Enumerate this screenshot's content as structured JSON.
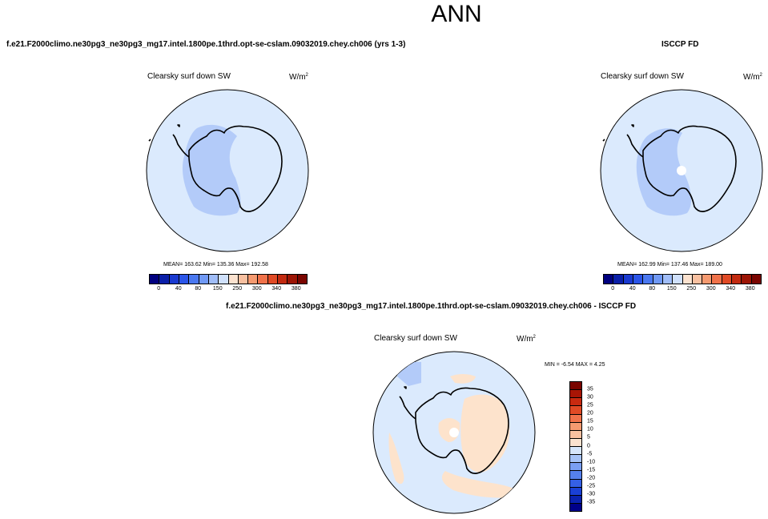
{
  "title": "ANN",
  "top_left": {
    "case_title": "f.e21.F2000climo.ne30pg3_ne30pg3_mg17.intel.1800pe.1thrd.opt-se-cslam.09032019.chey.ch006 (yrs 1-3)",
    "variable": "Clearsky surf down SW",
    "units": "W/m",
    "units_exp": "2",
    "stats": "MEAN= 163.62  Min= 135.36  Max= 192.58"
  },
  "top_right": {
    "case_title": "ISCCP FD",
    "variable": "Clearsky surf down SW",
    "units": "W/m",
    "units_exp": "2",
    "stats": "MEAN= 162.99  Min= 137.46  Max= 189.00"
  },
  "bottom": {
    "case_title": "f.e21.F2000climo.ne30pg3_ne30pg3_mg17.intel.1800pe.1thrd.opt-se-cslam.09032019.chey.ch006 - ISCCP FD",
    "variable": "Clearsky surf down SW",
    "units": "W/m",
    "units_exp": "2",
    "stats": "MIN =  -6.54 MAX =   4.25"
  },
  "colorbar_main": {
    "colors": [
      "#00007f",
      "#0a1fa8",
      "#1a3ad0",
      "#2b55e8",
      "#4a78f0",
      "#7099f5",
      "#a0bdf8",
      "#cfe0fb",
      "#fbe2cf",
      "#f8c0a0",
      "#f59a70",
      "#f0724a",
      "#e04a25",
      "#c22a10",
      "#9c1505",
      "#7a0500"
    ],
    "ticks": [
      "0",
      "40",
      "80",
      "150",
      "250",
      "300",
      "340",
      "380"
    ]
  },
  "colorbar_diff": {
    "colors": [
      "#7a0500",
      "#a81505",
      "#c82a10",
      "#e04a25",
      "#f0724a",
      "#f59a70",
      "#f8c0a0",
      "#fbe2cf",
      "#d6e6fb",
      "#a6c3f7",
      "#7a9ff3",
      "#5580ee",
      "#3560e6",
      "#1a40d6",
      "#0a22b0",
      "#00008a"
    ],
    "ticks": [
      "35",
      "30",
      "25",
      "20",
      "15",
      "10",
      "5",
      "0",
      "-5",
      "-10",
      "-15",
      "-20",
      "-25",
      "-30",
      "-35"
    ]
  },
  "maps": {
    "ocean_color": "#dbeafd",
    "model_region_color": "#b3cbf9",
    "diff_positive_color": "#fde3cc",
    "diff_negative_color": "#b3cbf9",
    "coast_color": "#000000",
    "pole_hole_color": "#ffffff"
  }
}
